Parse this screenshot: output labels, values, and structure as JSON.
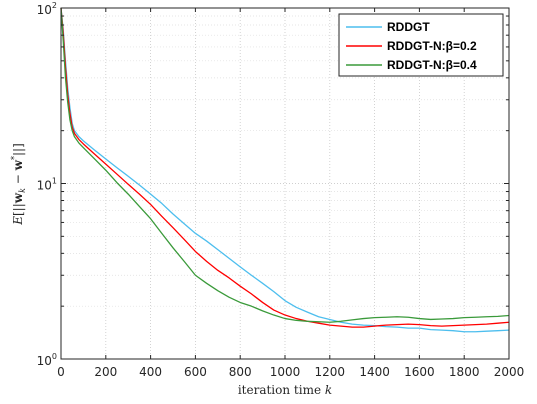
{
  "chart_data": {
    "type": "line",
    "xlabel": "iteration time k",
    "ylabel": "E[||w_k − w*||]",
    "xlim": [
      0,
      2000
    ],
    "ylim": [
      1,
      100
    ],
    "yscale": "log",
    "grid": true,
    "legend_position": "top-right",
    "x_ticks": [
      "0",
      "200",
      "400",
      "600",
      "800",
      "1000",
      "1200",
      "1400",
      "1600",
      "1800",
      "2000"
    ],
    "y_ticks": [
      {
        "value": 1,
        "base": "10",
        "exp": "0"
      },
      {
        "value": 10,
        "base": "10",
        "exp": "1"
      },
      {
        "value": 100,
        "base": "10",
        "exp": "2"
      }
    ],
    "series": [
      {
        "name": "RDDGT",
        "color": "#4dbeee",
        "x": [
          0,
          10,
          20,
          30,
          40,
          50,
          60,
          80,
          100,
          150,
          200,
          250,
          300,
          350,
          400,
          450,
          500,
          550,
          600,
          650,
          700,
          750,
          800,
          850,
          900,
          950,
          1000,
          1050,
          1100,
          1150,
          1200,
          1250,
          1300,
          1350,
          1400,
          1450,
          1500,
          1550,
          1600,
          1650,
          1700,
          1750,
          1800,
          1850,
          1900,
          1950,
          2000
        ],
        "y": [
          100,
          75,
          50,
          35,
          27,
          22,
          20,
          18.5,
          17.5,
          15.5,
          13.8,
          12.3,
          11,
          9.8,
          8.7,
          7.7,
          6.7,
          5.9,
          5.2,
          4.7,
          4.2,
          3.75,
          3.35,
          3.0,
          2.7,
          2.42,
          2.15,
          1.97,
          1.85,
          1.74,
          1.68,
          1.62,
          1.58,
          1.56,
          1.55,
          1.53,
          1.52,
          1.5,
          1.5,
          1.47,
          1.46,
          1.45,
          1.43,
          1.43,
          1.44,
          1.45,
          1.46
        ]
      },
      {
        "name": "RDDGT-N:β=0.2",
        "color": "#ff0000",
        "x": [
          0,
          10,
          20,
          30,
          40,
          50,
          60,
          80,
          100,
          150,
          200,
          250,
          300,
          350,
          400,
          450,
          500,
          550,
          600,
          650,
          700,
          750,
          800,
          850,
          900,
          950,
          1000,
          1050,
          1100,
          1150,
          1200,
          1250,
          1300,
          1350,
          1400,
          1450,
          1500,
          1550,
          1600,
          1650,
          1700,
          1750,
          1800,
          1850,
          1900,
          1950,
          2000
        ],
        "y": [
          100,
          72,
          46,
          32,
          25,
          21,
          19.3,
          17.8,
          16.8,
          14.7,
          12.9,
          11.3,
          9.9,
          8.7,
          7.6,
          6.5,
          5.6,
          4.8,
          4.1,
          3.6,
          3.2,
          2.9,
          2.6,
          2.35,
          2.1,
          1.9,
          1.78,
          1.7,
          1.64,
          1.6,
          1.56,
          1.54,
          1.52,
          1.52,
          1.54,
          1.56,
          1.57,
          1.58,
          1.57,
          1.55,
          1.54,
          1.55,
          1.56,
          1.57,
          1.58,
          1.6,
          1.62
        ]
      },
      {
        "name": "RDDGT-N:β=0.4",
        "color": "#3a9a3a",
        "x": [
          0,
          10,
          20,
          30,
          40,
          50,
          60,
          80,
          100,
          150,
          200,
          250,
          300,
          350,
          400,
          450,
          500,
          550,
          600,
          650,
          700,
          750,
          800,
          850,
          900,
          950,
          1000,
          1050,
          1100,
          1150,
          1200,
          1250,
          1300,
          1350,
          1400,
          1450,
          1500,
          1550,
          1600,
          1650,
          1700,
          1750,
          1800,
          1850,
          1900,
          1950,
          2000
        ],
        "y": [
          100,
          65,
          40,
          29,
          23,
          20,
          18.5,
          17,
          16,
          13.8,
          11.9,
          10.1,
          8.7,
          7.4,
          6.3,
          5.2,
          4.3,
          3.6,
          3.0,
          2.7,
          2.45,
          2.25,
          2.1,
          2.0,
          1.88,
          1.78,
          1.7,
          1.66,
          1.64,
          1.63,
          1.62,
          1.64,
          1.67,
          1.7,
          1.72,
          1.73,
          1.74,
          1.73,
          1.7,
          1.68,
          1.69,
          1.7,
          1.72,
          1.73,
          1.74,
          1.75,
          1.77
        ]
      }
    ]
  }
}
